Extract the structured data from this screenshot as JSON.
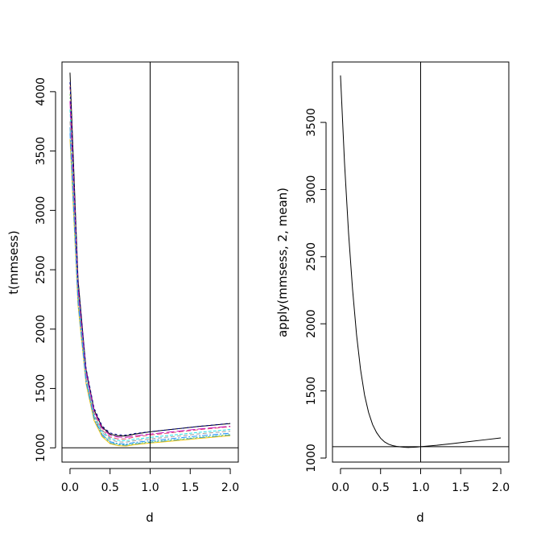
{
  "chart_data": [
    {
      "type": "line",
      "xlabel": "d",
      "ylabel": "t(mmsess)",
      "xlim": [
        -0.1,
        2.1
      ],
      "ylim": [
        880,
        4250
      ],
      "xticks": [
        "0.0",
        "0.5",
        "1.0",
        "1.5",
        "2.0"
      ],
      "yticks": [
        "1000",
        "1500",
        "2000",
        "2500",
        "3000",
        "3500",
        "4000"
      ],
      "vline": 1.0,
      "hline": 1000,
      "series_colors": [
        "#000000",
        "#df536b",
        "#61d04f",
        "#2297e6",
        "#28e2e5",
        "#cd0bbc",
        "#f5c710",
        "#9e9e9e",
        "#00008b",
        "#1e90ff"
      ],
      "series": [
        {
          "values": [
            4160,
            2420,
            1660,
            1320,
            1175,
            1115,
            1100,
            1100,
            1115,
            1135,
            1150,
            1165,
            1180,
            1192,
            1205
          ]
        },
        {
          "values": [
            4050,
            2370,
            1630,
            1295,
            1150,
            1090,
            1075,
            1075,
            1090,
            1108,
            1122,
            1138,
            1152,
            1165,
            1178
          ]
        },
        {
          "values": [
            3980,
            2320,
            1590,
            1260,
            1115,
            1050,
            1030,
            1025,
            1035,
            1050,
            1062,
            1075,
            1088,
            1100,
            1112
          ]
        },
        {
          "values": [
            3700,
            2250,
            1560,
            1240,
            1100,
            1040,
            1025,
            1022,
            1032,
            1046,
            1058,
            1071,
            1084,
            1096,
            1108
          ]
        },
        {
          "values": [
            3850,
            2300,
            1600,
            1280,
            1140,
            1080,
            1062,
            1060,
            1072,
            1088,
            1102,
            1116,
            1130,
            1142,
            1155
          ]
        },
        {
          "values": [
            3920,
            2350,
            1640,
            1310,
            1165,
            1105,
            1090,
            1088,
            1100,
            1116,
            1130,
            1144,
            1158,
            1170,
            1182
          ]
        },
        {
          "values": [
            3600,
            2200,
            1540,
            1230,
            1095,
            1035,
            1018,
            1015,
            1026,
            1040,
            1052,
            1065,
            1078,
            1090,
            1102
          ]
        },
        {
          "values": [
            3750,
            2280,
            1580,
            1270,
            1130,
            1068,
            1050,
            1048,
            1060,
            1075,
            1089,
            1103,
            1117,
            1129,
            1141
          ]
        },
        {
          "values": [
            4080,
            2400,
            1670,
            1335,
            1185,
            1125,
            1110,
            1108,
            1120,
            1136,
            1150,
            1165,
            1180,
            1193,
            1207
          ]
        },
        {
          "values": [
            3650,
            2230,
            1555,
            1250,
            1112,
            1052,
            1035,
            1033,
            1045,
            1060,
            1073,
            1087,
            1100,
            1112,
            1124
          ]
        }
      ],
      "x": [
        0.0,
        0.1,
        0.2,
        0.3,
        0.4,
        0.5,
        0.6,
        0.7,
        0.8,
        1.0,
        1.2,
        1.4,
        1.6,
        1.8,
        2.0
      ]
    },
    {
      "type": "line",
      "xlabel": "d",
      "ylabel": "apply(mmsess, 2, mean)",
      "xlim": [
        -0.1,
        2.1
      ],
      "ylim": [
        970,
        3950
      ],
      "xticks": [
        "0.0",
        "0.5",
        "1.0",
        "1.5",
        "2.0"
      ],
      "yticks": [
        "1000",
        "1500",
        "2000",
        "2500",
        "3000",
        "3500"
      ],
      "vline": 1.0,
      "hline": 1085,
      "series": [
        {
          "color": "#000000",
          "x": [
            0.0,
            0.05,
            0.1,
            0.15,
            0.2,
            0.25,
            0.3,
            0.35,
            0.4,
            0.45,
            0.5,
            0.55,
            0.6,
            0.65,
            0.7,
            0.75,
            0.8,
            0.85,
            0.9,
            0.95,
            1.0,
            1.1,
            1.2,
            1.4,
            1.6,
            1.8,
            2.0
          ],
          "values": [
            3850,
            3200,
            2680,
            2260,
            1920,
            1660,
            1470,
            1340,
            1250,
            1190,
            1148,
            1120,
            1103,
            1093,
            1087,
            1083,
            1080,
            1079,
            1080,
            1082,
            1085,
            1090,
            1095,
            1108,
            1122,
            1136,
            1150
          ]
        }
      ]
    }
  ]
}
